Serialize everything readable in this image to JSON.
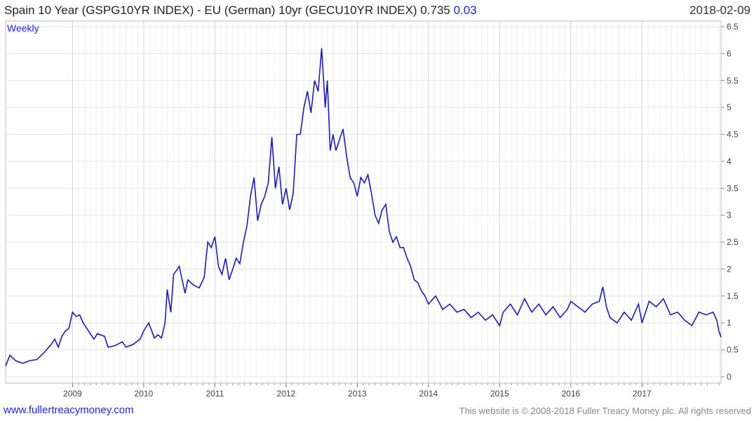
{
  "header": {
    "title": "Spain 10 Year (GSPG10YR INDEX) - EU (German) 10yr (GECU10YR INDEX) 0.735",
    "change": "0.03",
    "date": "2018-02-09"
  },
  "footer": {
    "site": "www.fullertreacymoney.com",
    "copyright": "This website is © 2008-2018 Fuller Treacy Money plc. All rights reserved"
  },
  "colors": {
    "line": "#1b1bb5",
    "grid": "#e3e3e3",
    "accent": "#1b2ad6"
  },
  "chart_data": {
    "type": "line",
    "interval_label": "Weekly",
    "grid": true,
    "ylim": [
      0,
      6.5
    ],
    "y_ticks": [
      "0",
      "0.5",
      "1",
      "1.5",
      "2",
      "2.5",
      "3",
      "3.5",
      "4",
      "4.5",
      "5",
      "5.5",
      "6",
      "6.5"
    ],
    "x_ticks": [
      "2009",
      "2010",
      "2011",
      "2012",
      "2013",
      "2014",
      "2015",
      "2016",
      "2017"
    ],
    "x_range": [
      2008.06,
      2018.11
    ],
    "series": [
      {
        "x": [
          2008.06,
          2008.12,
          2008.2,
          2008.3,
          2008.4,
          2008.5,
          2008.6,
          2008.7,
          2008.75,
          2008.8,
          2008.85,
          2008.9,
          2008.95,
          2009.0,
          2009.05,
          2009.1,
          2009.15,
          2009.2,
          2009.3,
          2009.35,
          2009.45,
          2009.5,
          2009.6,
          2009.7,
          2009.75,
          2009.85,
          2009.95,
          2010.0,
          2010.07,
          2010.15,
          2010.2,
          2010.25,
          2010.3,
          2010.33,
          2010.38,
          2010.42,
          2010.5,
          2010.58,
          2010.62,
          2010.7,
          2010.78,
          2010.85,
          2010.9,
          2010.95,
          2011.0,
          2011.05,
          2011.1,
          2011.15,
          2011.2,
          2011.25,
          2011.3,
          2011.35,
          2011.4,
          2011.45,
          2011.5,
          2011.55,
          2011.6,
          2011.65,
          2011.7,
          2011.75,
          2011.8,
          2011.85,
          2011.9,
          2011.95,
          2012.0,
          2012.05,
          2012.1,
          2012.15,
          2012.2,
          2012.25,
          2012.3,
          2012.35,
          2012.4,
          2012.45,
          2012.5,
          2012.55,
          2012.58,
          2012.62,
          2012.66,
          2012.7,
          2012.75,
          2012.8,
          2012.85,
          2012.9,
          2012.95,
          2013.0,
          2013.05,
          2013.1,
          2013.15,
          2013.2,
          2013.25,
          2013.3,
          2013.35,
          2013.4,
          2013.45,
          2013.5,
          2013.55,
          2013.6,
          2013.65,
          2013.7,
          2013.75,
          2013.8,
          2013.85,
          2013.9,
          2013.95,
          2014.0,
          2014.1,
          2014.2,
          2014.3,
          2014.4,
          2014.5,
          2014.6,
          2014.7,
          2014.8,
          2014.9,
          2015.0,
          2015.05,
          2015.15,
          2015.25,
          2015.35,
          2015.45,
          2015.55,
          2015.65,
          2015.75,
          2015.85,
          2015.95,
          2016.0,
          2016.1,
          2016.2,
          2016.3,
          2016.4,
          2016.45,
          2016.5,
          2016.55,
          2016.65,
          2016.75,
          2016.85,
          2016.95,
          2017.0,
          2017.1,
          2017.2,
          2017.3,
          2017.4,
          2017.5,
          2017.6,
          2017.7,
          2017.8,
          2017.9,
          2018.0,
          2018.05,
          2018.08,
          2018.11
        ],
        "values": [
          0.2,
          0.4,
          0.3,
          0.25,
          0.3,
          0.32,
          0.45,
          0.6,
          0.7,
          0.55,
          0.75,
          0.85,
          0.9,
          1.2,
          1.12,
          1.15,
          1.0,
          0.9,
          0.7,
          0.8,
          0.75,
          0.55,
          0.58,
          0.65,
          0.55,
          0.6,
          0.7,
          0.85,
          1.0,
          0.72,
          0.78,
          0.72,
          1.0,
          1.62,
          1.2,
          1.9,
          2.05,
          1.55,
          1.8,
          1.7,
          1.65,
          1.85,
          2.5,
          2.4,
          2.6,
          2.05,
          1.9,
          2.2,
          1.8,
          2.0,
          2.2,
          2.1,
          2.5,
          2.8,
          3.35,
          3.7,
          2.9,
          3.2,
          3.35,
          3.6,
          4.45,
          3.5,
          3.9,
          3.2,
          3.5,
          3.1,
          3.4,
          4.5,
          4.5,
          5.0,
          5.3,
          4.9,
          5.5,
          5.3,
          6.1,
          5.0,
          5.5,
          4.2,
          4.5,
          4.2,
          4.4,
          4.6,
          4.1,
          3.7,
          3.6,
          3.35,
          3.7,
          3.6,
          3.75,
          3.4,
          3.0,
          2.85,
          3.1,
          3.2,
          2.7,
          2.5,
          2.6,
          2.4,
          2.4,
          2.2,
          2.05,
          1.8,
          1.75,
          1.6,
          1.5,
          1.35,
          1.5,
          1.25,
          1.35,
          1.2,
          1.25,
          1.1,
          1.2,
          1.05,
          1.15,
          0.95,
          1.2,
          1.35,
          1.15,
          1.45,
          1.2,
          1.35,
          1.15,
          1.3,
          1.1,
          1.25,
          1.4,
          1.3,
          1.2,
          1.35,
          1.4,
          1.67,
          1.3,
          1.1,
          1.0,
          1.2,
          1.05,
          1.35,
          1.0,
          1.4,
          1.3,
          1.45,
          1.15,
          1.2,
          1.05,
          0.95,
          1.2,
          1.15,
          1.2,
          1.05,
          0.85,
          0.735
        ]
      }
    ]
  }
}
